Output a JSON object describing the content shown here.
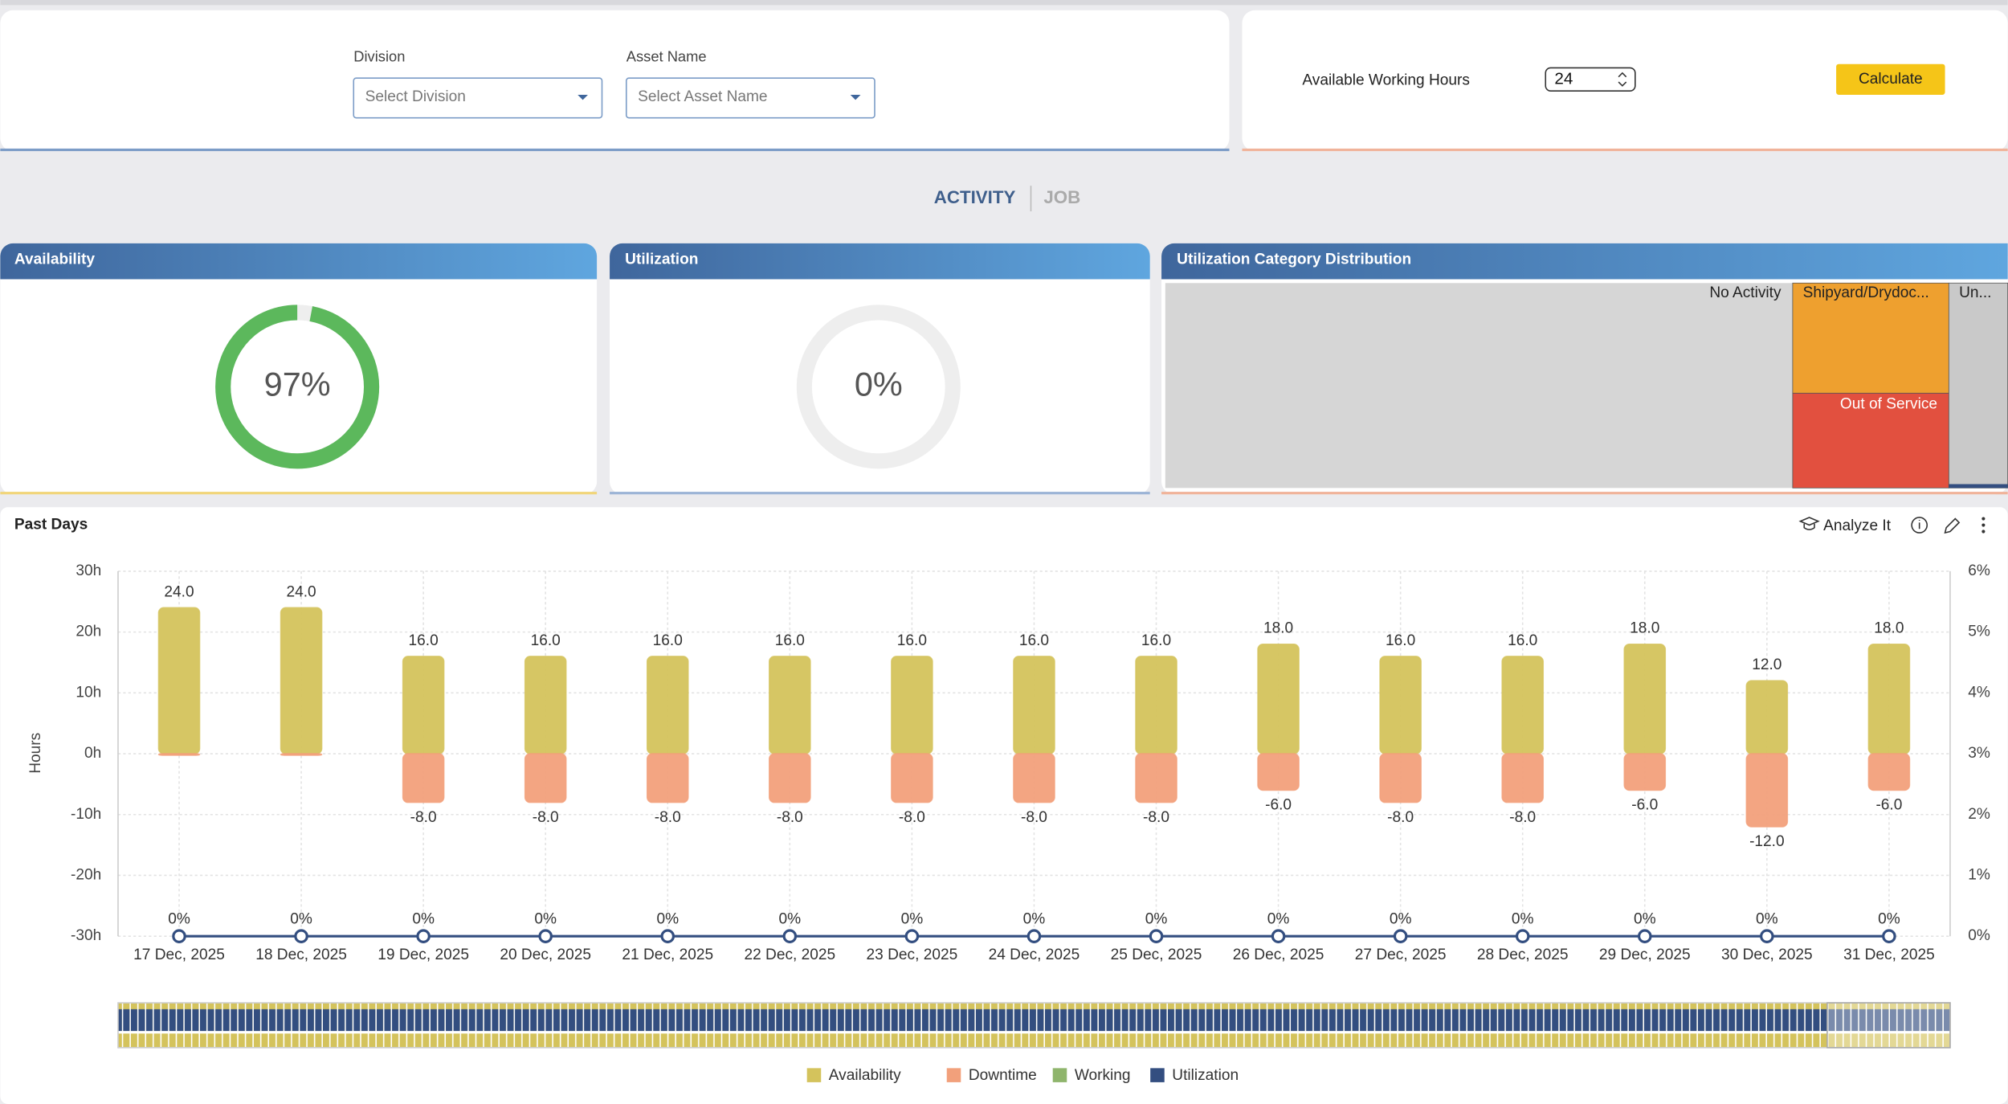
{
  "filters": [
    {
      "label": "Division",
      "placeholder": "Select Division"
    },
    {
      "label": "Asset Name",
      "placeholder": "Select Asset Name"
    }
  ],
  "hours": {
    "label": "Available Working Hours",
    "value": 24,
    "button": "Calculate"
  },
  "tabs": [
    "ACTIVITY",
    "JOB"
  ],
  "gauges": [
    {
      "title": "Availability",
      "value": 97,
      "label": "97%",
      "color": "#5cb85c"
    },
    {
      "title": "Utilization",
      "value": 0,
      "label": "0%",
      "color": "#5cb85c"
    }
  ],
  "treemap": {
    "title": "Utilization Category Distribution",
    "items": [
      "No Activity",
      "Shipyard/Drydoc...",
      "Out of Service",
      "Un..."
    ]
  },
  "chart_data": {
    "type": "bar",
    "title": "Past Days",
    "action": "Analyze It",
    "ylabel": "Hours",
    "categories": [
      "17 Dec, 2025",
      "18 Dec, 2025",
      "19 Dec, 2025",
      "20 Dec, 2025",
      "21 Dec, 2025",
      "22 Dec, 2025",
      "23 Dec, 2025",
      "24 Dec, 2025",
      "25 Dec, 2025",
      "26 Dec, 2025",
      "27 Dec, 2025",
      "28 Dec, 2025",
      "29 Dec, 2025",
      "30 Dec, 2025",
      "31 Dec, 2025"
    ],
    "series": [
      {
        "name": "Availability",
        "color": "#d4c35c",
        "kind": "bar",
        "values": [
          24,
          24,
          16,
          16,
          16,
          16,
          16,
          16,
          16,
          18,
          16,
          16,
          18,
          12,
          18
        ],
        "value_labels": [
          "24.0",
          "24.0",
          "16.0",
          "16.0",
          "16.0",
          "16.0",
          "16.0",
          "16.0",
          "16.0",
          "18.0",
          "16.0",
          "16.0",
          "18.0",
          "12.0",
          "18.0"
        ]
      },
      {
        "name": "Downtime",
        "color": "#f2a07b",
        "kind": "bar",
        "values": [
          0,
          0,
          -8,
          -8,
          -8,
          -8,
          -8,
          -8,
          -8,
          -6,
          -8,
          -8,
          -6,
          -12,
          -6
        ],
        "value_labels": [
          null,
          null,
          "-8.0",
          "-8.0",
          "-8.0",
          "-8.0",
          "-8.0",
          "-8.0",
          "-8.0",
          "-6.0",
          "-8.0",
          "-8.0",
          "-6.0",
          "-12.0",
          "-6.0"
        ]
      },
      {
        "name": "Working",
        "color": "#8fb56c",
        "kind": "bar",
        "values": [
          null,
          null,
          null,
          null,
          null,
          null,
          null,
          null,
          null,
          null,
          null,
          null,
          null,
          null,
          null
        ]
      },
      {
        "name": "Utilization",
        "color": "#334e80",
        "kind": "line",
        "axis": "y2",
        "values": [
          0,
          0,
          0,
          0,
          0,
          0,
          0,
          0,
          0,
          0,
          0,
          0,
          0,
          0,
          0
        ],
        "value_labels": [
          "0%",
          "0%",
          "0%",
          "0%",
          "0%",
          "0%",
          "0%",
          "0%",
          "0%",
          "0%",
          "0%",
          "0%",
          "0%",
          "0%",
          "0%"
        ]
      }
    ],
    "ylim": [
      -30,
      30
    ],
    "yticks": [
      {
        "value": -30,
        "label": "-30h"
      },
      {
        "value": -20,
        "label": "-20h"
      },
      {
        "value": -10,
        "label": "-10h"
      },
      {
        "value": 0,
        "label": "0h"
      },
      {
        "value": 10,
        "label": "10h"
      },
      {
        "value": 20,
        "label": "20h"
      },
      {
        "value": 30,
        "label": "30h"
      }
    ],
    "y2lim": [
      0,
      6
    ],
    "y2ticks": [
      {
        "value": 0,
        "label": "0%"
      },
      {
        "value": 1,
        "label": "1%"
      },
      {
        "value": 2,
        "label": "2%"
      },
      {
        "value": 3,
        "label": "3%"
      },
      {
        "value": 4,
        "label": "4%"
      },
      {
        "value": 5,
        "label": "5%"
      },
      {
        "value": 6,
        "label": "6%"
      }
    ],
    "grid": true,
    "legend": "bottom"
  }
}
